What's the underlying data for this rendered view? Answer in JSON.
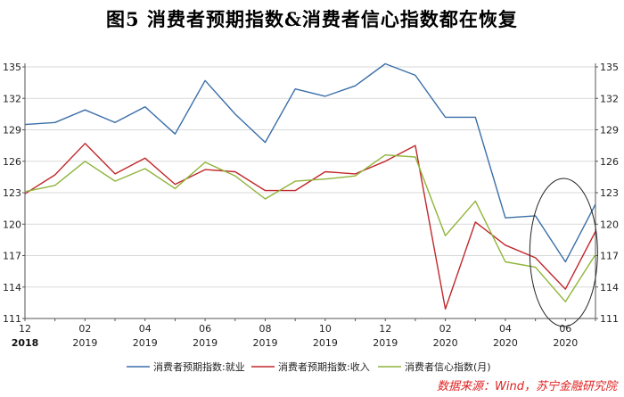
{
  "title": "图5  消费者预期指数&消费者信心指数都在恢复",
  "source": "数据来源：Wind，苏宁金融研究院",
  "colors": {
    "employment": "#3a6ea8",
    "income": "#c0282c",
    "confidence": "#8fb43a",
    "axis": "#555555"
  },
  "chart_data": {
    "type": "line",
    "ylim": [
      111,
      135
    ],
    "yticks": [
      111,
      114,
      117,
      120,
      123,
      126,
      129,
      132,
      135
    ],
    "x": [
      "2018-12",
      "2019-01",
      "2019-02",
      "2019-03",
      "2019-04",
      "2019-05",
      "2019-06",
      "2019-07",
      "2019-08",
      "2019-09",
      "2019-10",
      "2019-11",
      "2019-12",
      "2020-01",
      "2020-02",
      "2020-03",
      "2020-04",
      "2020-05",
      "2020-06",
      "2020-07"
    ],
    "xtick_labels": [
      {
        "month": "12",
        "year": "2018"
      },
      {
        "month": "02",
        "year": "2019"
      },
      {
        "month": "04",
        "year": "2019"
      },
      {
        "month": "06",
        "year": "2019"
      },
      {
        "month": "08",
        "year": "2019"
      },
      {
        "month": "10",
        "year": "2019"
      },
      {
        "month": "12",
        "year": "2019"
      },
      {
        "month": "02",
        "year": "2020"
      },
      {
        "month": "04",
        "year": "2020"
      },
      {
        "month": "06",
        "year": "2020"
      }
    ],
    "series": [
      {
        "name": "消费者预期指数:就业",
        "key": "employment",
        "values": [
          129.5,
          129.7,
          130.9,
          129.7,
          131.2,
          128.6,
          133.7,
          130.5,
          127.8,
          132.9,
          132.2,
          133.2,
          135.3,
          134.2,
          130.2,
          130.2,
          120.6,
          120.8,
          116.4,
          121.9
        ]
      },
      {
        "name": "消费者预期指数:收入",
        "key": "income",
        "values": [
          122.9,
          124.7,
          127.7,
          124.8,
          126.3,
          123.8,
          125.2,
          125.0,
          123.2,
          123.2,
          125.0,
          124.8,
          126.0,
          127.5,
          111.9,
          120.2,
          118.0,
          116.8,
          113.8,
          119.3
        ]
      },
      {
        "name": "消费者信心指数(月)",
        "key": "confidence",
        "values": [
          123.1,
          123.7,
          126.0,
          124.1,
          125.3,
          123.4,
          125.9,
          124.6,
          122.4,
          124.1,
          124.3,
          124.6,
          126.6,
          126.4,
          118.9,
          122.2,
          116.4,
          115.9,
          112.6,
          117.1
        ]
      }
    ],
    "grid": {
      "horizontal": true,
      "vertical": false
    },
    "y_axis_both_sides": true,
    "legend_position": "bottom",
    "annotation": "ellipse highlighting 2020-05 to 2020-07"
  }
}
